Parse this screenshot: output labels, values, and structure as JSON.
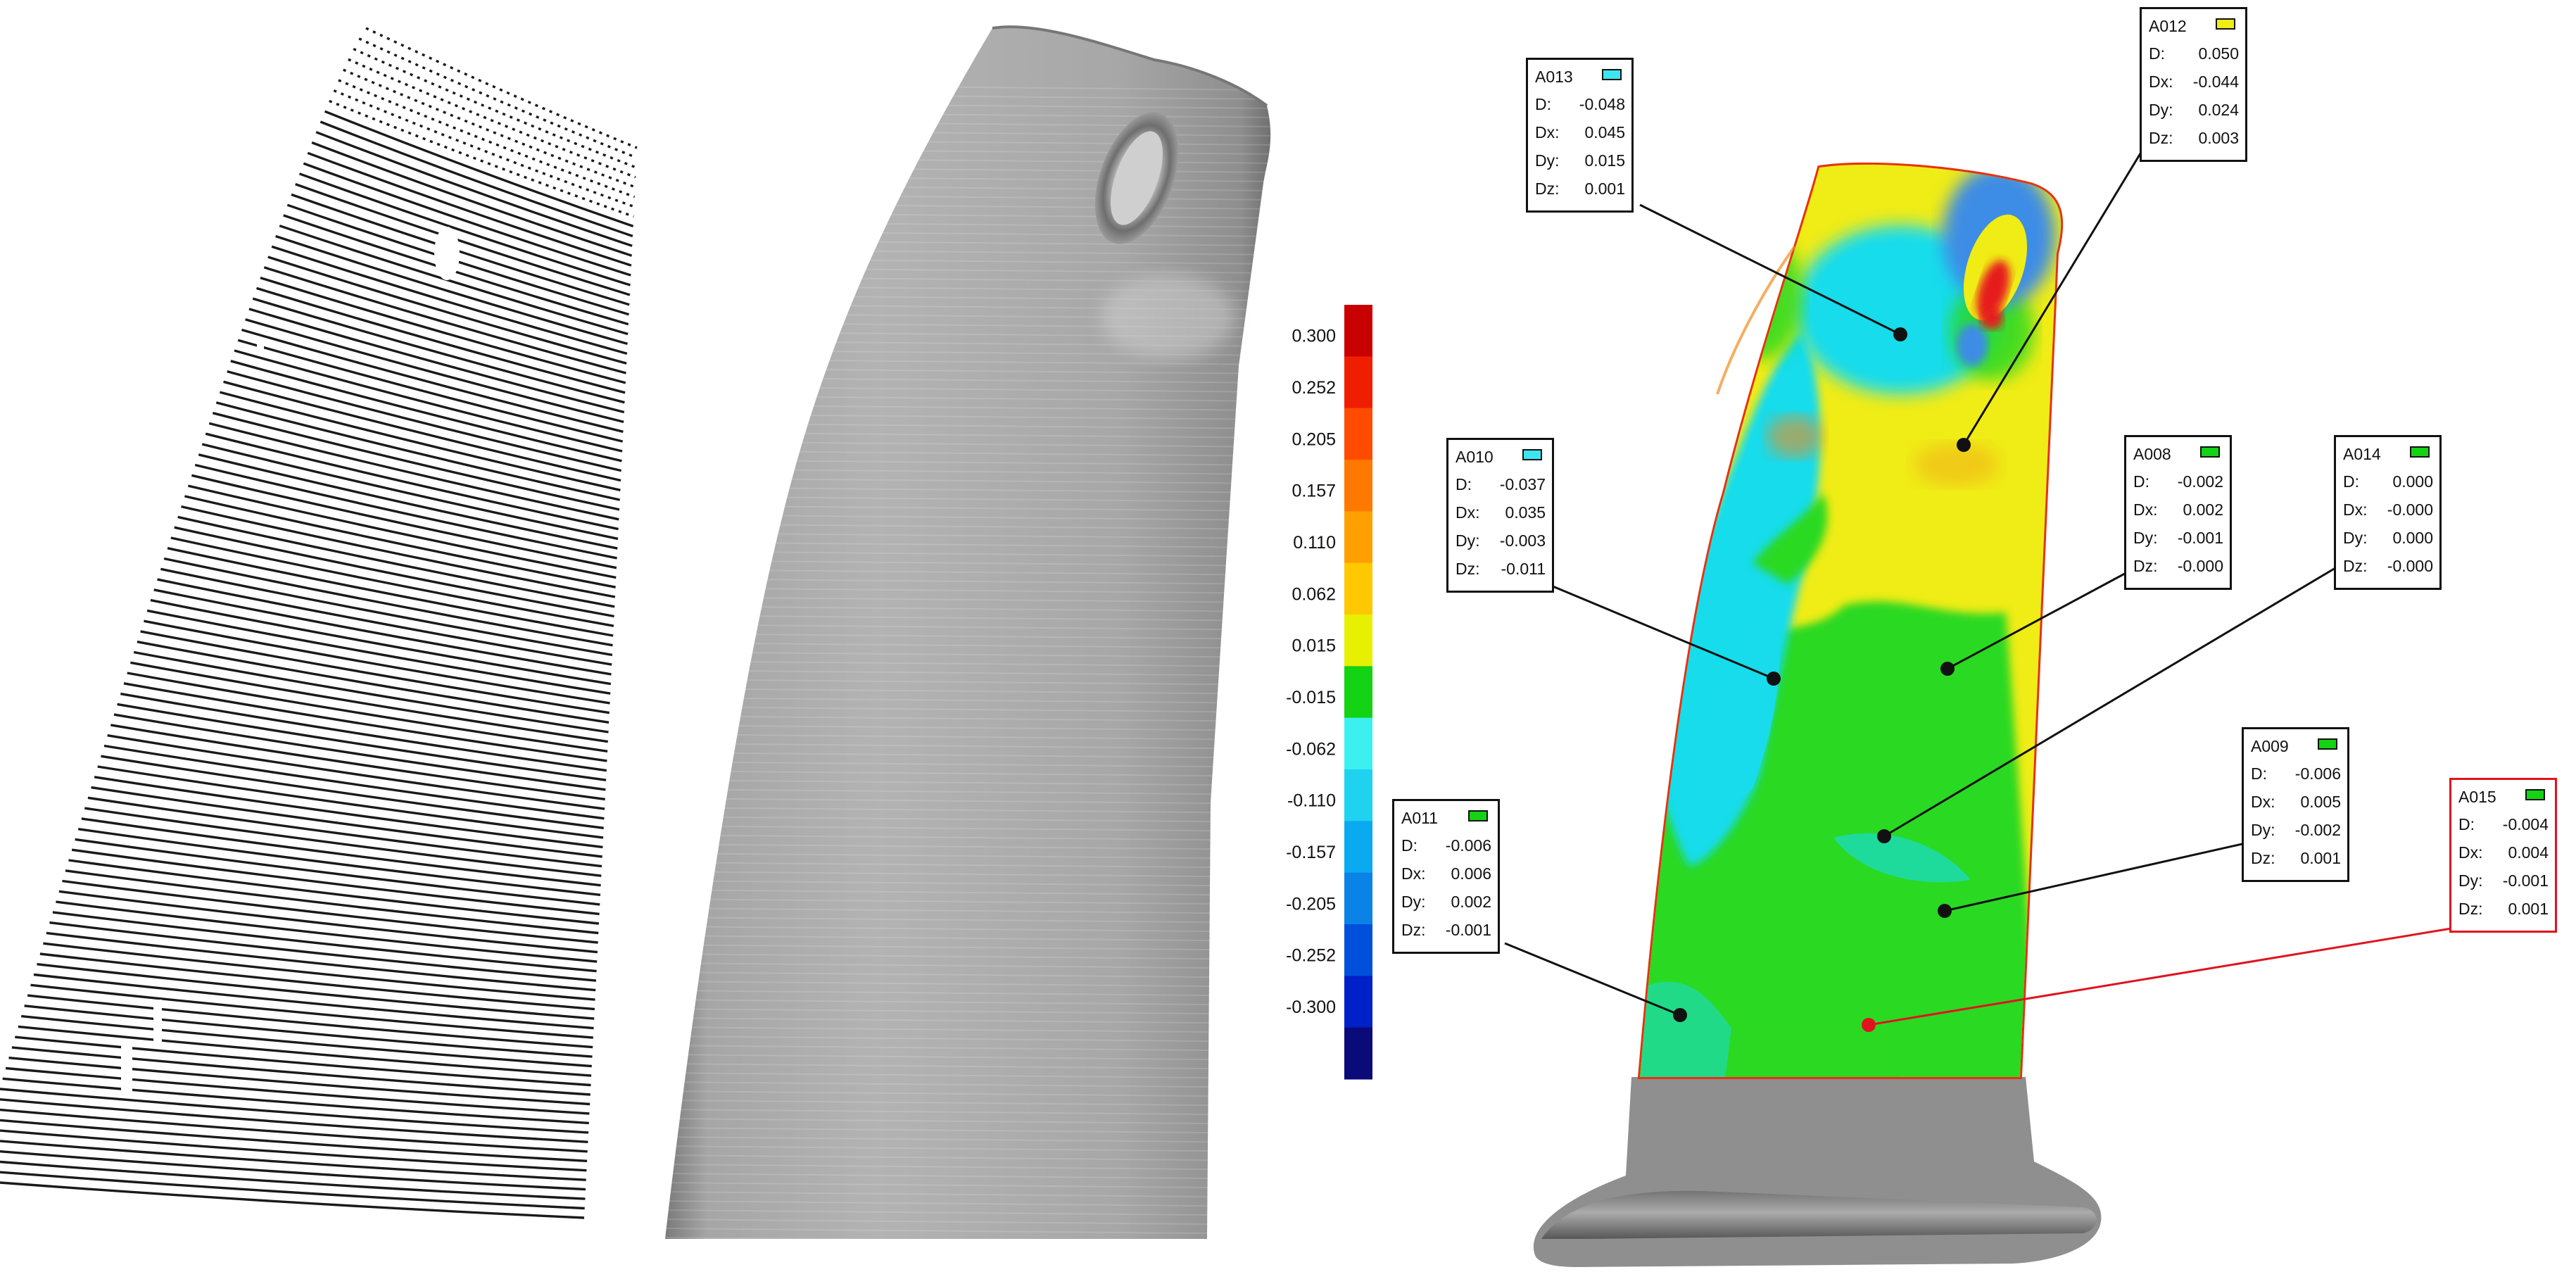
{
  "color_bar": {
    "labels": [
      "0.300",
      "0.252",
      "0.205",
      "0.157",
      "0.110",
      "0.062",
      "0.015",
      "-0.015",
      "-0.062",
      "-0.110",
      "-0.157",
      "-0.205",
      "-0.252",
      "-0.300"
    ],
    "colors": [
      "#c80000",
      "#f01e00",
      "#ff4b00",
      "#ff7800",
      "#ffa000",
      "#ffc800",
      "#e6f000",
      "#14d214",
      "#3cf0f0",
      "#1ed2f0",
      "#0aaaf0",
      "#0a82e6",
      "#0050dc",
      "#0020c8",
      "#0a0a78"
    ]
  },
  "deviation_colors": {
    "yellow": "#f0ec16",
    "green": "#2bd922",
    "cyan": "#18dcec",
    "blue": "#3c8ce6",
    "red": "#e61e1e",
    "orange": "#f08c1e",
    "edge_red": "#e63214",
    "root_gray": "#8f8f8f",
    "model_gray": "#a9a9a9"
  },
  "annotation_row_keys": [
    "D:",
    "Dx:",
    "Dy:",
    "Dz:"
  ],
  "annotations": [
    {
      "id": "A013",
      "swatch": "#3ce6f0",
      "values": [
        "-0.048",
        "0.045",
        "0.015",
        "0.001"
      ]
    },
    {
      "id": "A012",
      "swatch": "#f0ec16",
      "values": [
        "0.050",
        "-0.044",
        "0.024",
        "0.003"
      ]
    },
    {
      "id": "A010",
      "swatch": "#3ce6f0",
      "values": [
        "-0.037",
        "0.035",
        "-0.003",
        "-0.011"
      ]
    },
    {
      "id": "A008",
      "swatch": "#14d214",
      "values": [
        "-0.002",
        "0.002",
        "-0.001",
        "-0.000"
      ]
    },
    {
      "id": "A014",
      "swatch": "#14d214",
      "values": [
        "0.000",
        "-0.000",
        "0.000",
        "-0.000"
      ]
    },
    {
      "id": "A009",
      "swatch": "#14d214",
      "values": [
        "-0.006",
        "0.005",
        "-0.002",
        "0.001"
      ]
    },
    {
      "id": "A011",
      "swatch": "#14d214",
      "values": [
        "-0.006",
        "0.006",
        "0.002",
        "-0.001"
      ]
    },
    {
      "id": "A015",
      "swatch": "#14d214",
      "values": [
        "-0.004",
        "0.004",
        "-0.001",
        "0.001"
      ]
    }
  ]
}
